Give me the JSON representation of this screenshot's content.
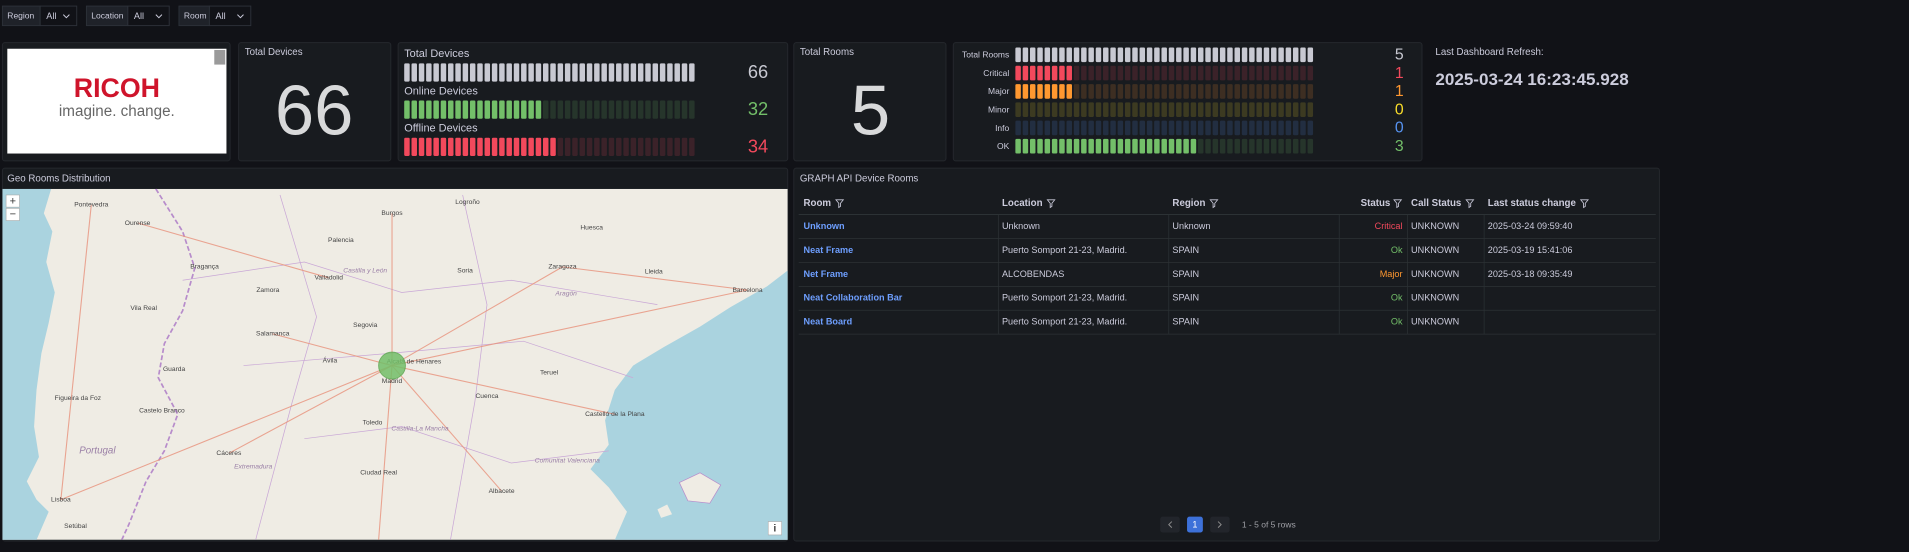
{
  "filters": [
    {
      "label": "Region",
      "value": "All"
    },
    {
      "label": "Location",
      "value": "All"
    },
    {
      "label": "Room",
      "value": "All"
    }
  ],
  "logo": {
    "brand": "RICOH",
    "tagline": "imagine. change."
  },
  "total_devices_stat": {
    "title": "Total Devices",
    "value": 66
  },
  "devices_gauge": {
    "series": [
      {
        "name": "Total Devices",
        "value": 66,
        "color": "#c8c9d2"
      },
      {
        "name": "Online Devices",
        "value": 32,
        "color": "#73bf69"
      },
      {
        "name": "Offline Devices",
        "value": 34,
        "color": "#f2495c"
      }
    ]
  },
  "total_rooms_stat": {
    "title": "Total Rooms",
    "value": 5
  },
  "rooms_gauge": {
    "series": [
      {
        "name": "Total Rooms",
        "value": 5,
        "color": "#c8c9d2"
      },
      {
        "name": "Critical",
        "value": 1,
        "color": "#f2495c"
      },
      {
        "name": "Major",
        "value": 1,
        "color": "#ff9830"
      },
      {
        "name": "Minor",
        "value": 0,
        "color": "#fade2a"
      },
      {
        "name": "Info",
        "value": 0,
        "color": "#5794f2"
      },
      {
        "name": "OK",
        "value": 3,
        "color": "#73bf69"
      }
    ]
  },
  "refresh": {
    "label": "Last Dashboard Refresh:",
    "value": "2025-03-24 16:23:45.928"
  },
  "map": {
    "title": "Geo Rooms Distribution",
    "zoom_in": "+",
    "zoom_out": "−",
    "info": "i",
    "labels": [
      "Pontevedra",
      "Ourense",
      "Logroño",
      "Burgos",
      "Huesca",
      "Palencia",
      "Valladolid",
      "Castilla y León",
      "Soria",
      "Zaragoza",
      "Lleida",
      "Barcelona",
      "Aragón",
      "Zamora",
      "Bragança",
      "Vila Real",
      "Guarda",
      "Salamanca",
      "Segovia",
      "Ávila",
      "Alcalá de Henares",
      "Madrid",
      "Cuenca",
      "Teruel",
      "Castelló de la Plana",
      "Toledo",
      "Castilla-La Mancha",
      "Portugal",
      "Castelo Branco",
      "Cáceres",
      "Extremadura",
      "Ciudad Real",
      "Albacete",
      "Comunitat Valenciana",
      "Lisboa",
      "Setúbal",
      "Figueira da Foz"
    ]
  },
  "table": {
    "title": "GRAPH API Device Rooms",
    "columns": [
      "Room",
      "Location",
      "Region",
      "Status",
      "Call Status",
      "Last status change"
    ],
    "rows": [
      [
        "Unknown",
        "Unknown",
        "Unknown",
        "Critical",
        "UNKNOWN",
        "2025-03-24 09:59:40"
      ],
      [
        "Neat Frame",
        "Puerto Somport 21-23, Madrid.",
        "SPAIN",
        "Ok",
        "UNKNOWN",
        "2025-03-19 15:41:06"
      ],
      [
        "Net Frame",
        "ALCOBENDAS",
        "SPAIN",
        "Major",
        "UNKNOWN",
        "2025-03-18 09:35:49"
      ],
      [
        "Neat Collaboration Bar",
        "Puerto Somport 21-23, Madrid.",
        "SPAIN",
        "Ok",
        "UNKNOWN",
        null
      ],
      [
        "Neat Board",
        "Puerto Somport 21-23, Madrid.",
        "SPAIN",
        "Ok",
        "UNKNOWN",
        null
      ]
    ],
    "status_colors": {
      "Critical": "#f2495c",
      "Ok": "#73bf69",
      "Major": "#ff9830"
    },
    "pagination": {
      "page": 1,
      "summary": "1 - 5 of 5 rows"
    }
  }
}
